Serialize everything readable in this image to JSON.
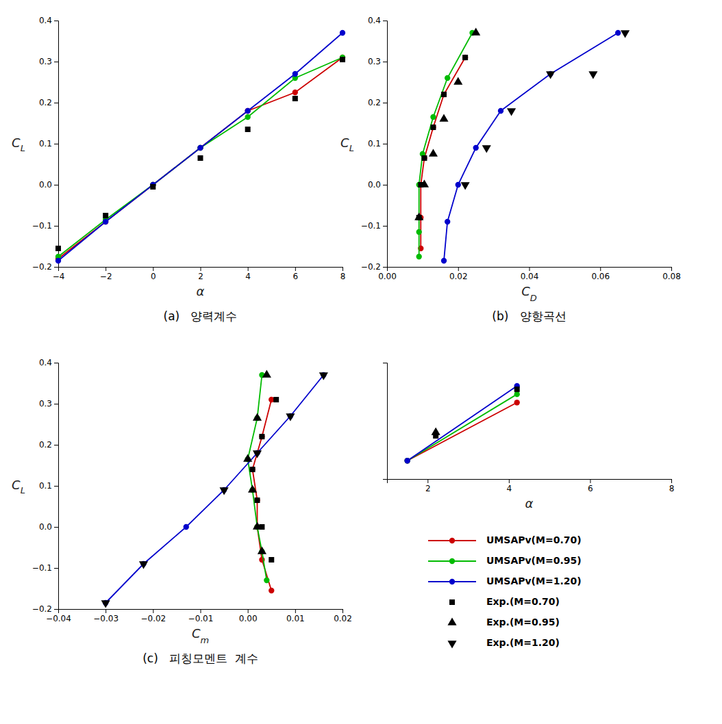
{
  "chart_data": [
    {
      "type": "line",
      "title": "(a)   양력계수",
      "x_label": "α",
      "y_label": "CL",
      "xlim": [
        -4,
        8
      ],
      "ylim": [
        -0.2,
        0.4
      ],
      "xticks": [
        -4,
        -2,
        0,
        2,
        4,
        6,
        8
      ],
      "yticks": [
        -0.2,
        -0.1,
        {
          "value": 0.0,
          "label": "0.0"
        },
        0.1,
        0.2,
        0.3,
        0.4
      ],
      "series": [
        {
          "type": "line",
          "color": "#cc0000",
          "marker": "circle",
          "x": [
            -4,
            -2,
            0,
            2,
            4,
            6,
            8
          ],
          "values": [
            -0.18,
            -0.09,
            0.0,
            0.09,
            0.18,
            0.225,
            0.31
          ]
        },
        {
          "type": "line",
          "color": "#00bb00",
          "marker": "circle",
          "x": [
            -4,
            -2,
            0,
            2,
            4,
            6,
            8
          ],
          "values": [
            -0.175,
            -0.085,
            0.0,
            0.09,
            0.165,
            0.26,
            0.31
          ]
        },
        {
          "type": "line",
          "color": "#0000cc",
          "marker": "circle",
          "x": [
            -4,
            -2,
            0,
            2,
            4,
            6,
            8
          ],
          "values": [
            -0.185,
            -0.09,
            0.0,
            0.09,
            0.18,
            0.27,
            0.37
          ]
        },
        {
          "type": "scatter",
          "color": "#000000",
          "marker": "square",
          "x": [
            -4,
            -2,
            0,
            2,
            4,
            6,
            8
          ],
          "values": [
            -0.155,
            -0.075,
            -0.005,
            0.065,
            0.135,
            0.21,
            0.305
          ]
        }
      ]
    },
    {
      "type": "line",
      "title": "(b)   양항곡선",
      "x_label": "CD",
      "y_label": "CL",
      "xlim": [
        0.0,
        0.08
      ],
      "ylim": [
        -0.2,
        0.4
      ],
      "xticks": [
        {
          "value": 0.0,
          "label": "0.00"
        },
        0.02,
        0.04,
        0.06,
        0.08
      ],
      "yticks": [
        -0.2,
        -0.1,
        {
          "value": 0.0,
          "label": "0.0"
        },
        0.1,
        0.2,
        0.3,
        0.4
      ],
      "legend": "lower right",
      "series": [
        {
          "name": "UMSAPv(M=0.70)",
          "type": "line",
          "color": "#cc0000",
          "marker": "circle",
          "x": [
            0.0095,
            0.0095,
            0.0095,
            0.0105,
            0.013,
            0.016,
            0.022
          ],
          "values": [
            -0.155,
            -0.08,
            0.0,
            0.065,
            0.14,
            0.22,
            0.31
          ]
        },
        {
          "name": "UMSAPv(M=0.95)",
          "type": "line",
          "color": "#00bb00",
          "marker": "circle",
          "x": [
            0.009,
            0.009,
            0.009,
            0.01,
            0.013,
            0.017,
            0.024
          ],
          "values": [
            -0.175,
            -0.115,
            0.0,
            0.075,
            0.165,
            0.26,
            0.37
          ]
        },
        {
          "name": "UMSAPv(M=1.20)",
          "type": "line",
          "color": "#0000cc",
          "marker": "circle",
          "x": [
            0.016,
            0.017,
            0.02,
            0.025,
            0.032,
            0.046,
            0.065
          ],
          "values": [
            -0.185,
            -0.09,
            0.0,
            0.09,
            0.18,
            0.27,
            0.37
          ]
        },
        {
          "name": "Exp.(M=0.70)",
          "type": "scatter",
          "color": "#000000",
          "marker": "square",
          "x": [
            0.009,
            0.0095,
            0.0105,
            0.013,
            0.016,
            0.022
          ],
          "values": [
            -0.08,
            0.0,
            0.065,
            0.14,
            0.22,
            0.31
          ]
        },
        {
          "name": "Exp.(M=0.95)",
          "type": "scatter",
          "color": "#000000",
          "marker": "triangle-up",
          "x": [
            0.009,
            0.0105,
            0.013,
            0.016,
            0.02,
            0.025
          ],
          "values": [
            -0.08,
            0.0,
            0.075,
            0.16,
            0.25,
            0.37
          ]
        },
        {
          "name": "Exp.(M=1.20)",
          "type": "scatter",
          "color": "#000000",
          "marker": "triangle-down",
          "x": [
            0.022,
            0.028,
            0.035,
            0.046,
            0.058,
            0.067
          ],
          "values": [
            0.0,
            0.09,
            0.18,
            0.27,
            0.27,
            0.37
          ]
        }
      ]
    },
    {
      "type": "line",
      "title": "(c)   피칭모멘트  계수",
      "x_label": "Cm",
      "y_label": "CL",
      "xlim": [
        -0.04,
        0.02
      ],
      "ylim": [
        -0.2,
        0.4
      ],
      "xticks": [
        -0.04,
        -0.03,
        -0.02,
        -0.01,
        {
          "value": 0.0,
          "label": "0.00"
        },
        0.01,
        0.02
      ],
      "yticks": [
        -0.2,
        -0.1,
        {
          "value": 0.0,
          "label": "0.0"
        },
        0.1,
        0.2,
        0.3,
        0.4
      ],
      "series": [
        {
          "type": "line",
          "color": "#cc0000",
          "marker": "circle",
          "x": [
            0.005,
            0.003,
            0.002,
            0.002,
            0.001,
            0.003,
            0.005
          ],
          "values": [
            -0.155,
            -0.08,
            0.0,
            0.065,
            0.14,
            0.22,
            0.31
          ]
        },
        {
          "type": "line",
          "color": "#00bb00",
          "marker": "circle",
          "x": [
            0.004,
            0.003,
            0.002,
            0.001,
            0.0,
            0.002,
            0.003
          ],
          "values": [
            -0.13,
            -0.06,
            0.0,
            0.09,
            0.165,
            0.265,
            0.37
          ]
        },
        {
          "type": "line",
          "color": "#0000cc",
          "marker": "circle",
          "x": [
            -0.03,
            -0.022,
            -0.013,
            -0.005,
            0.002,
            0.009,
            0.016
          ],
          "values": [
            -0.185,
            -0.09,
            0.0,
            0.09,
            0.18,
            0.27,
            0.37
          ]
        },
        {
          "type": "scatter",
          "color": "#000000",
          "marker": "square",
          "x": [
            0.005,
            0.003,
            0.002,
            0.001,
            0.003,
            0.006
          ],
          "values": [
            -0.08,
            0.0,
            0.065,
            0.14,
            0.22,
            0.31
          ]
        },
        {
          "type": "scatter",
          "color": "#000000",
          "marker": "triangle-up",
          "x": [
            0.003,
            0.002,
            0.001,
            0.0,
            0.002,
            0.004
          ],
          "values": [
            -0.06,
            0.0,
            0.09,
            0.165,
            0.265,
            0.37
          ]
        },
        {
          "type": "scatter",
          "color": "#000000",
          "marker": "triangle-down",
          "x": [
            -0.03,
            -0.022,
            -0.005,
            0.002,
            0.009,
            0.016
          ],
          "values": [
            -0.185,
            -0.09,
            0.09,
            0.18,
            0.27,
            0.37
          ]
        }
      ]
    },
    {
      "type": "line",
      "x_label": "α",
      "xlim": [
        1,
        8
      ],
      "ylim": [
        0.15,
        0.5
      ],
      "xticks": [
        2,
        4,
        6,
        8
      ],
      "tick_labels": "x",
      "series": [
        {
          "type": "line",
          "color": "#cc0000",
          "marker": "circle",
          "x": [
            1.5,
            4.2
          ],
          "values": [
            0.205,
            0.38
          ]
        },
        {
          "type": "line",
          "color": "#00bb00",
          "marker": "circle",
          "x": [
            1.5,
            4.2
          ],
          "values": [
            0.205,
            0.405
          ]
        },
        {
          "type": "line",
          "color": "#0000cc",
          "marker": "circle",
          "x": [
            1.5,
            4.2
          ],
          "values": [
            0.205,
            0.43
          ]
        },
        {
          "type": "scatter",
          "color": "#000000",
          "marker": "square",
          "x": [
            2.2,
            4.2
          ],
          "values": [
            0.28,
            0.42
          ]
        },
        {
          "type": "scatter",
          "color": "#000000",
          "marker": "triangle-up",
          "x": [
            2.2
          ],
          "values": [
            0.29
          ]
        }
      ]
    }
  ]
}
